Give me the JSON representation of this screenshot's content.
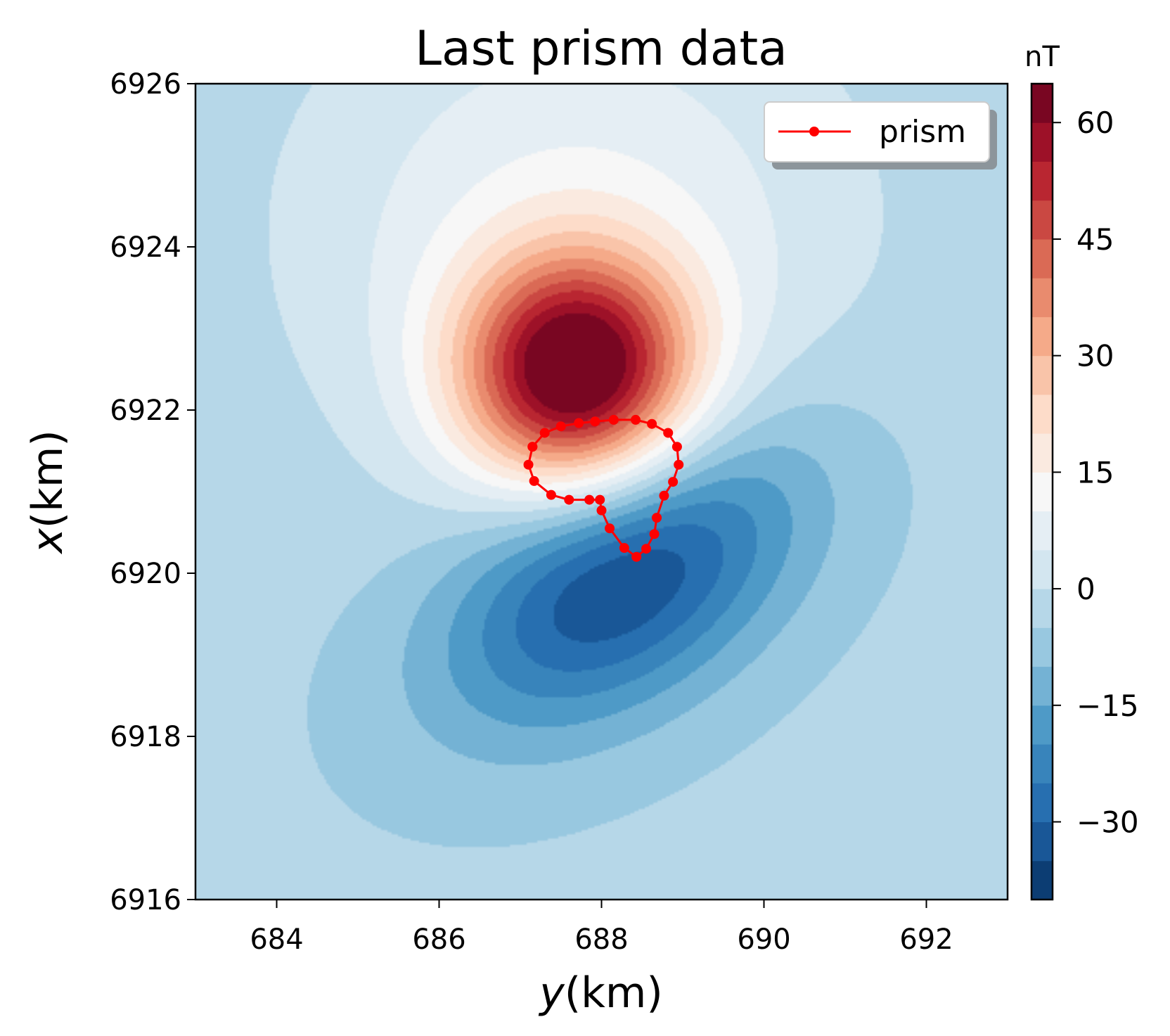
{
  "chart_data": {
    "type": "heatmap",
    "title": "Last prism data",
    "xlabel_italic": "y",
    "xlabel_rest": "(km)",
    "ylabel_italic": "x",
    "ylabel_rest": "(km)",
    "xlim": [
      683,
      693
    ],
    "ylim": [
      6916,
      6926
    ],
    "xticks": [
      684,
      686,
      688,
      690,
      692
    ],
    "yticks": [
      6916,
      6918,
      6920,
      6922,
      6924,
      6926
    ],
    "colorbar": {
      "label": "nT",
      "range": [
        -40,
        65
      ],
      "level_step": 5,
      "ticks": [
        -30,
        -15,
        0,
        15,
        30,
        45,
        60
      ],
      "tick_labels": [
        "−30",
        "−15",
        "0",
        "15",
        "30",
        "45",
        "60"
      ],
      "colormap": "RdBu_r"
    },
    "field": {
      "positive_peak": {
        "y": 687.7,
        "x": 6922.45,
        "value": 64
      },
      "negative_peak": {
        "y": 688.3,
        "x": 6920.0,
        "value": -38
      },
      "background_value": -4
    },
    "legend": {
      "entries": [
        "prism"
      ],
      "placement": "top-right"
    },
    "series": [
      {
        "name": "prism",
        "color": "#ff0000",
        "marker": "circle",
        "points": [
          [
            687.15,
            6921.55
          ],
          [
            687.3,
            6921.72
          ],
          [
            687.5,
            6921.8
          ],
          [
            687.72,
            6921.84
          ],
          [
            687.92,
            6921.86
          ],
          [
            688.15,
            6921.88
          ],
          [
            688.42,
            6921.88
          ],
          [
            688.62,
            6921.83
          ],
          [
            688.82,
            6921.72
          ],
          [
            688.93,
            6921.55
          ],
          [
            688.95,
            6921.33
          ],
          [
            688.88,
            6921.12
          ],
          [
            688.77,
            6920.95
          ],
          [
            688.68,
            6920.68
          ],
          [
            688.65,
            6920.48
          ],
          [
            688.55,
            6920.3
          ],
          [
            688.43,
            6920.2
          ],
          [
            688.28,
            6920.31
          ],
          [
            688.1,
            6920.55
          ],
          [
            688.0,
            6920.77
          ],
          [
            687.98,
            6920.9
          ],
          [
            687.85,
            6920.9
          ],
          [
            687.6,
            6920.9
          ],
          [
            687.38,
            6920.96
          ],
          [
            687.17,
            6921.13
          ],
          [
            687.1,
            6921.33
          ],
          [
            687.15,
            6921.55
          ]
        ]
      }
    ]
  }
}
